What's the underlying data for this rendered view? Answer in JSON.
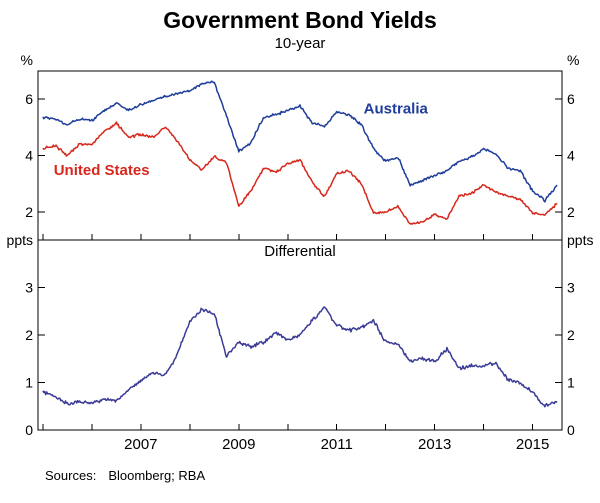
{
  "title": "Government Bond Yields",
  "subtitle": "10-year",
  "sources": {
    "label": "Sources:",
    "value": "Bloomberg; RBA"
  },
  "chart_data": {
    "type": "line",
    "x_start": 2005.0,
    "x_step": 0.25,
    "xlim": [
      2004.9,
      2015.6
    ],
    "xticks_labeled": [
      2007,
      2009,
      2011,
      2013,
      2015
    ],
    "xticks_minor": [
      2005,
      2006,
      2007,
      2008,
      2009,
      2010,
      2011,
      2012,
      2013,
      2014,
      2015
    ],
    "panels": [
      {
        "id": "yields",
        "unit_left": "%",
        "unit_right": "%",
        "ylim": [
          1,
          7
        ],
        "yticks": [
          2,
          4,
          6
        ],
        "series": [
          {
            "name": "Australia",
            "color": "#1f3d9a",
            "values": [
              5.35,
              5.3,
              5.1,
              5.3,
              5.25,
              5.6,
              5.85,
              5.6,
              5.8,
              5.95,
              6.1,
              6.2,
              6.3,
              6.55,
              6.6,
              5.4,
              4.15,
              4.45,
              5.35,
              5.45,
              5.6,
              5.75,
              5.15,
              5.05,
              5.55,
              5.45,
              5.1,
              4.25,
              3.8,
              3.95,
              2.95,
              3.1,
              3.3,
              3.45,
              3.8,
              3.95,
              4.25,
              4.05,
              3.55,
              3.45,
              2.75,
              2.4,
              2.95
            ]
          },
          {
            "name": "United States",
            "color": "#d7281d",
            "values": [
              4.25,
              4.35,
              4.0,
              4.4,
              4.4,
              4.85,
              5.15,
              4.65,
              4.75,
              4.65,
              5.0,
              4.5,
              3.85,
              3.5,
              3.95,
              3.75,
              2.2,
              2.75,
              3.55,
              3.4,
              3.7,
              3.85,
              3.05,
              2.55,
              3.35,
              3.45,
              3.0,
              1.95,
              2.0,
              2.2,
              1.55,
              1.65,
              1.9,
              1.75,
              2.55,
              2.65,
              2.95,
              2.7,
              2.55,
              2.45,
              1.95,
              1.9,
              2.3
            ]
          }
        ],
        "annotations": [
          {
            "text": "Australia",
            "x": 2011.55,
            "value": 5.5,
            "color": "#1f3d9a",
            "anchor": "start"
          },
          {
            "text": "United States",
            "x": 2006.2,
            "value": 3.3,
            "color": "#d7281d",
            "anchor": "middle"
          }
        ]
      },
      {
        "id": "differential",
        "title": "Differential",
        "unit_left": "ppts",
        "unit_right": "ppts",
        "ylim": [
          0,
          4
        ],
        "yticks": [
          0,
          1,
          2,
          3
        ],
        "series": [
          {
            "name": "Differential",
            "color": "#3b3b96",
            "values": [
              0.8,
              0.7,
              0.55,
              0.6,
              0.55,
              0.65,
              0.6,
              0.85,
              1.05,
              1.2,
              1.15,
              1.6,
              2.3,
              2.55,
              2.45,
              1.55,
              1.85,
              1.75,
              1.85,
              2.05,
              1.9,
              2.0,
              2.3,
              2.6,
              2.2,
              2.1,
              2.15,
              2.3,
              1.85,
              1.8,
              1.45,
              1.5,
              1.45,
              1.7,
              1.3,
              1.35,
              1.35,
              1.4,
              1.05,
              1.0,
              0.8,
              0.5,
              0.6
            ]
          }
        ],
        "annotations": []
      }
    ]
  }
}
